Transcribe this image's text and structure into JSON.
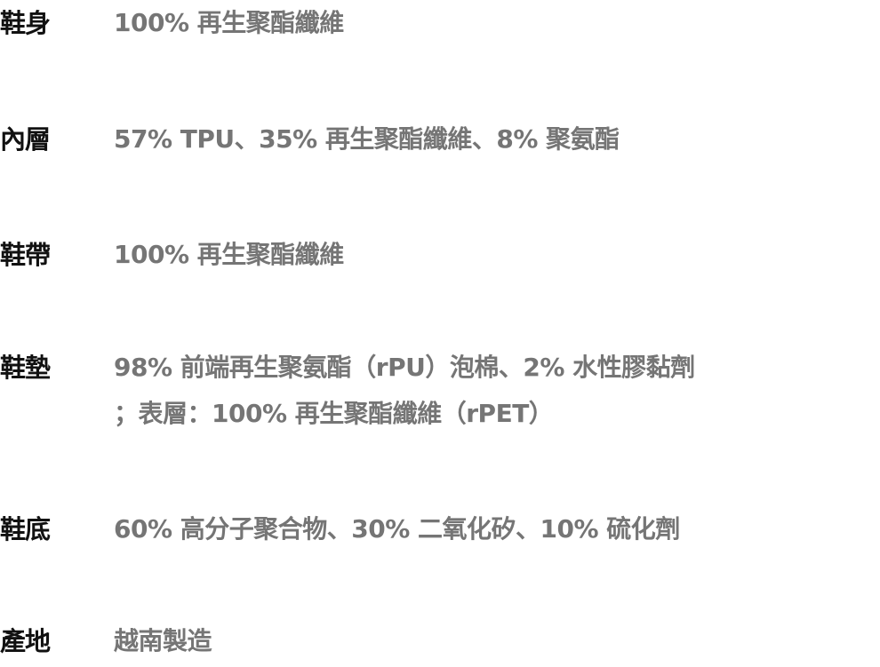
{
  "colors": {
    "label": "#111111",
    "value": "#757575"
  },
  "specs": [
    {
      "label": "鞋身",
      "value": "100% 再生聚酯纖維"
    },
    {
      "label": "內層",
      "value": "57% TPU、35% 再生聚酯纖維、8% 聚氨酯"
    },
    {
      "label": "鞋帶",
      "value": "100% 再生聚酯纖維"
    },
    {
      "label": "鞋墊",
      "value": "98% 前端再生聚氨酯（rPU）泡棉、2% 水性膠黏劑",
      "value_line2": "；表層：100% 再生聚酯纖維（rPET）"
    },
    {
      "label": "鞋底",
      "value": "60% 高分子聚合物、30% 二氧化矽、10% 硫化劑"
    },
    {
      "label": "產地",
      "value": "越南製造"
    }
  ]
}
